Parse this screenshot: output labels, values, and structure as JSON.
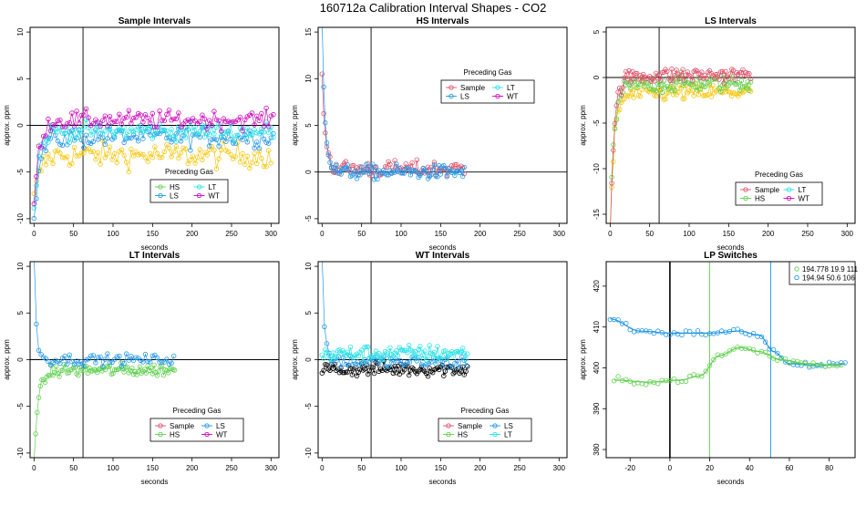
{
  "page": {
    "title": "160712a   Calibration Interval Shapes - CO2"
  },
  "chart_data": [
    {
      "type": "scatter",
      "title": "Sample Intervals",
      "xlabel": "seconds",
      "ylabel": "approx. ppm",
      "xlim": [
        -5,
        310
      ],
      "ylim": [
        -10.5,
        10.5
      ],
      "xticks": [
        0,
        50,
        100,
        150,
        200,
        250,
        300
      ],
      "yticks": [
        -10,
        -5,
        0,
        5,
        10
      ],
      "vline": 62,
      "hline": 0,
      "legend": {
        "title": "Preceding Gas",
        "placement": "lower-middle",
        "entries": [
          {
            "label": "HS",
            "color": "#61D04F"
          },
          {
            "label": "LT",
            "color": "#28E2E5"
          },
          {
            "label": "LS",
            "color": "#2297E6"
          },
          {
            "label": "WT",
            "color": "#CD0BBC"
          }
        ]
      },
      "series": [
        {
          "color": "#F5C710",
          "spike": {
            "start": -8,
            "end": -3,
            "decay": 8
          },
          "level": -3.2,
          "noise": 1.4,
          "x_end": 300,
          "step": 3
        },
        {
          "color": "#2297E6",
          "spike": {
            "start": -11,
            "end": -1.5,
            "decay": 6
          },
          "level": -1.2,
          "noise": 1.2,
          "x_end": 305,
          "step": 3
        },
        {
          "color": "#28E2E5",
          "spike": {
            "start": -9,
            "end": -0.5,
            "decay": 6
          },
          "level": -0.6,
          "noise": 1.0,
          "x_end": 305,
          "step": 3
        },
        {
          "color": "#CD0BBC",
          "spike": {
            "start": -9,
            "end": 0.5,
            "decay": 6
          },
          "level": 0.6,
          "noise": 1.0,
          "x_end": 305,
          "step": 3
        }
      ]
    },
    {
      "type": "scatter",
      "title": "HS Intervals",
      "xlabel": "seconds",
      "ylabel": "approx. ppm",
      "xlim": [
        -5,
        310
      ],
      "ylim": [
        -5.5,
        15.5
      ],
      "xticks": [
        0,
        50,
        100,
        150,
        200,
        250,
        300
      ],
      "yticks": [
        -5,
        0,
        5,
        10,
        15
      ],
      "vline": 62,
      "hline": 0,
      "legend": {
        "title": "Preceding Gas",
        "placement": "top-middle",
        "entries": [
          {
            "label": "Sample",
            "color": "#DF536B"
          },
          {
            "label": "LT",
            "color": "#28E2E5"
          },
          {
            "label": "LS",
            "color": "#2297E6"
          },
          {
            "label": "WT",
            "color": "#CD0BBC"
          }
        ]
      },
      "series": [
        {
          "color": "#DF536B",
          "spike": {
            "start": 11,
            "end": 0.4,
            "decay": 4
          },
          "level": 0.3,
          "noise": 0.9,
          "x_end": 180,
          "step": 2
        },
        {
          "color": "#2297E6",
          "spike": {
            "start": 16,
            "end": 0,
            "decay": 4
          },
          "level": 0.0,
          "noise": 0.8,
          "x_end": 180,
          "step": 2
        }
      ]
    },
    {
      "type": "scatter",
      "title": "LS Intervals",
      "xlabel": "seconds",
      "ylabel": "approx. ppm",
      "xlim": [
        -5,
        310
      ],
      "ylim": [
        -16,
        5.5
      ],
      "xticks": [
        0,
        50,
        100,
        150,
        200,
        250,
        300
      ],
      "yticks": [
        -15,
        -10,
        -5,
        0,
        5
      ],
      "vline": 62,
      "hline": 0,
      "legend": {
        "title": "Preceding Gas",
        "placement": "lower-middle",
        "entries": [
          {
            "label": "Sample",
            "color": "#DF536B"
          },
          {
            "label": "LT",
            "color": "#28E2E5"
          },
          {
            "label": "HS",
            "color": "#61D04F"
          },
          {
            "label": "WT",
            "color": "#CD0BBC"
          }
        ]
      },
      "series": [
        {
          "color": "#F5C710",
          "spike": {
            "start": -17,
            "end": -2,
            "decay": 5
          },
          "level": -1.6,
          "noise": 1.0,
          "x_end": 178,
          "step": 2
        },
        {
          "color": "#61D04F",
          "spike": {
            "start": -17,
            "end": -1,
            "decay": 5
          },
          "level": -0.6,
          "noise": 1.0,
          "x_end": 178,
          "step": 2
        },
        {
          "color": "#DF536B",
          "spike": {
            "start": -17,
            "end": 0,
            "decay": 5
          },
          "level": 0.3,
          "noise": 0.9,
          "x_end": 178,
          "step": 2
        }
      ]
    },
    {
      "type": "scatter",
      "title": "LT Intervals",
      "xlabel": "seconds",
      "ylabel": "approx. ppm",
      "xlim": [
        -5,
        310
      ],
      "ylim": [
        -10.5,
        10.5
      ],
      "xticks": [
        0,
        50,
        100,
        150,
        200,
        250,
        300
      ],
      "yticks": [
        -10,
        -5,
        0,
        5,
        10
      ],
      "vline": 62,
      "hline": 0,
      "legend": {
        "title": "Preceding Gas",
        "placement": "lower-middle",
        "entries": [
          {
            "label": "Sample",
            "color": "#DF536B"
          },
          {
            "label": "LS",
            "color": "#2297E6"
          },
          {
            "label": "HS",
            "color": "#61D04F"
          },
          {
            "label": "WT",
            "color": "#CD0BBC"
          }
        ]
      },
      "series": [
        {
          "color": "#61D04F",
          "spike": {
            "start": -10,
            "end": -1.2,
            "decay": 6
          },
          "level": -1.1,
          "noise": 0.7,
          "x_end": 178,
          "step": 2
        },
        {
          "color": "#2297E6",
          "spike": {
            "start": 11,
            "end": 0,
            "decay": 3
          },
          "level": 0.0,
          "noise": 0.6,
          "x_end": 178,
          "step": 3
        }
      ]
    },
    {
      "type": "scatter",
      "title": "WT Intervals",
      "xlabel": "seconds",
      "ylabel": "approx. ppm",
      "xlim": [
        -5,
        310
      ],
      "ylim": [
        -10.5,
        10.5
      ],
      "xticks": [
        0,
        50,
        100,
        150,
        200,
        250,
        300
      ],
      "yticks": [
        -10,
        -5,
        0,
        5,
        10
      ],
      "vline": 62,
      "hline": 0,
      "legend": {
        "title": "Preceding Gas",
        "placement": "lower-middle",
        "entries": [
          {
            "label": "Sample",
            "color": "#DF536B"
          },
          {
            "label": "LS",
            "color": "#2297E6"
          },
          {
            "label": "HS",
            "color": "#61D04F"
          },
          {
            "label": "LT",
            "color": "#28E2E5"
          }
        ]
      },
      "series": [
        {
          "color": "#000000",
          "spike": {
            "start": -1,
            "end": -1,
            "decay": 3
          },
          "level": -1.0,
          "noise": 0.8,
          "x_end": 185,
          "step": 2
        },
        {
          "color": "#2297E6",
          "spike": {
            "start": 11,
            "end": 0,
            "decay": 3
          },
          "level": -0.3,
          "noise": 0.8,
          "x_end": 185,
          "step": 3
        },
        {
          "color": "#28E2E5",
          "spike": {
            "start": 0.5,
            "end": 0.5,
            "decay": 3
          },
          "level": 0.7,
          "noise": 0.9,
          "x_end": 185,
          "step": 2
        }
      ]
    },
    {
      "type": "scatter",
      "title": "LP Switches",
      "xlabel": "seconds",
      "ylabel": "approx. ppm",
      "xlim": [
        -32,
        93
      ],
      "ylim": [
        378,
        426
      ],
      "xticks": [
        -20,
        0,
        20,
        40,
        60,
        80
      ],
      "yticks": [
        380,
        390,
        400,
        410,
        420
      ],
      "vline": 0,
      "vlines_colored": [
        {
          "x": 19.9,
          "color": "#61D04F"
        },
        {
          "x": 50.6,
          "color": "#2297E6"
        }
      ],
      "legend": {
        "placement": "top-right",
        "entries": [
          {
            "label": "194.778 19.9 111",
            "color": "#61D04F"
          },
          {
            "label": "194.94 50.6 106",
            "color": "#2297E6"
          }
        ]
      },
      "series": [
        {
          "color": "#2297E6",
          "x_start": -30,
          "x_end": 88,
          "step": 2,
          "curve": [
            [
              -30,
              412
            ],
            [
              -15,
              409
            ],
            [
              0,
              408.5
            ],
            [
              20,
              408.5
            ],
            [
              35,
              409
            ],
            [
              45,
              408
            ],
            [
              52,
              404
            ],
            [
              60,
              401
            ],
            [
              75,
              400.5
            ],
            [
              88,
              401
            ]
          ]
        },
        {
          "color": "#61D04F",
          "x_start": -28,
          "x_end": 86,
          "step": 2,
          "curve": [
            [
              -28,
              397
            ],
            [
              -10,
              396.5
            ],
            [
              5,
              397
            ],
            [
              15,
              398
            ],
            [
              25,
              403
            ],
            [
              35,
              405
            ],
            [
              45,
              404
            ],
            [
              55,
              402
            ],
            [
              70,
              401
            ],
            [
              86,
              400.5
            ]
          ]
        }
      ]
    }
  ]
}
